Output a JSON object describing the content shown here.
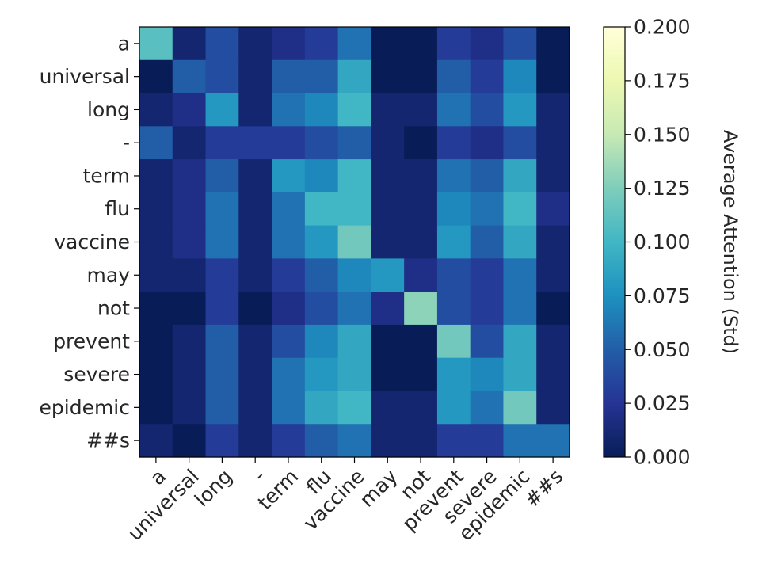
{
  "chart_data": {
    "type": "heatmap",
    "x_categories": [
      "a",
      "universal",
      "long",
      "-",
      "term",
      "flu",
      "vaccine",
      "may",
      "not",
      "prevent",
      "severe",
      "epidemic",
      "##s"
    ],
    "y_categories": [
      "a",
      "universal",
      "long",
      "-",
      "term",
      "flu",
      "vaccine",
      "may",
      "not",
      "prevent",
      "severe",
      "epidemic",
      "##s"
    ],
    "values": [
      [
        0.11,
        0.01,
        0.04,
        0.01,
        0.02,
        0.03,
        0.06,
        0.0,
        0.0,
        0.03,
        0.02,
        0.04,
        0.0
      ],
      [
        0.0,
        0.05,
        0.04,
        0.01,
        0.05,
        0.05,
        0.09,
        0.0,
        0.0,
        0.05,
        0.03,
        0.07,
        0.0
      ],
      [
        0.01,
        0.02,
        0.08,
        0.01,
        0.06,
        0.07,
        0.1,
        0.01,
        0.01,
        0.06,
        0.04,
        0.08,
        0.01
      ],
      [
        0.05,
        0.01,
        0.03,
        0.03,
        0.03,
        0.04,
        0.05,
        0.01,
        0.0,
        0.03,
        0.02,
        0.04,
        0.01
      ],
      [
        0.01,
        0.02,
        0.05,
        0.01,
        0.08,
        0.07,
        0.1,
        0.01,
        0.01,
        0.06,
        0.05,
        0.09,
        0.01
      ],
      [
        0.01,
        0.02,
        0.06,
        0.01,
        0.06,
        0.1,
        0.1,
        0.01,
        0.01,
        0.07,
        0.06,
        0.1,
        0.02
      ],
      [
        0.01,
        0.02,
        0.06,
        0.01,
        0.06,
        0.08,
        0.12,
        0.01,
        0.01,
        0.08,
        0.05,
        0.09,
        0.01
      ],
      [
        0.01,
        0.01,
        0.03,
        0.01,
        0.03,
        0.05,
        0.07,
        0.08,
        0.02,
        0.04,
        0.03,
        0.06,
        0.01
      ],
      [
        0.0,
        0.0,
        0.03,
        0.0,
        0.02,
        0.04,
        0.06,
        0.02,
        0.13,
        0.04,
        0.03,
        0.06,
        0.0
      ],
      [
        0.0,
        0.01,
        0.05,
        0.01,
        0.04,
        0.07,
        0.09,
        0.0,
        0.0,
        0.12,
        0.04,
        0.09,
        0.01
      ],
      [
        0.0,
        0.01,
        0.05,
        0.01,
        0.06,
        0.08,
        0.09,
        0.0,
        0.0,
        0.08,
        0.07,
        0.09,
        0.01
      ],
      [
        0.0,
        0.01,
        0.05,
        0.01,
        0.06,
        0.09,
        0.1,
        0.01,
        0.01,
        0.08,
        0.06,
        0.12,
        0.01
      ],
      [
        0.01,
        0.0,
        0.03,
        0.01,
        0.03,
        0.05,
        0.06,
        0.01,
        0.01,
        0.03,
        0.03,
        0.06,
        0.06
      ]
    ],
    "colormap": "YlGnBu",
    "colorbar": {
      "label": "Average Attention (Std)",
      "range": [
        0,
        0.2
      ],
      "ticks": [
        "0.000",
        "0.025",
        "0.050",
        "0.075",
        "0.100",
        "0.125",
        "0.150",
        "0.175",
        "0.200"
      ]
    },
    "grid": false
  }
}
